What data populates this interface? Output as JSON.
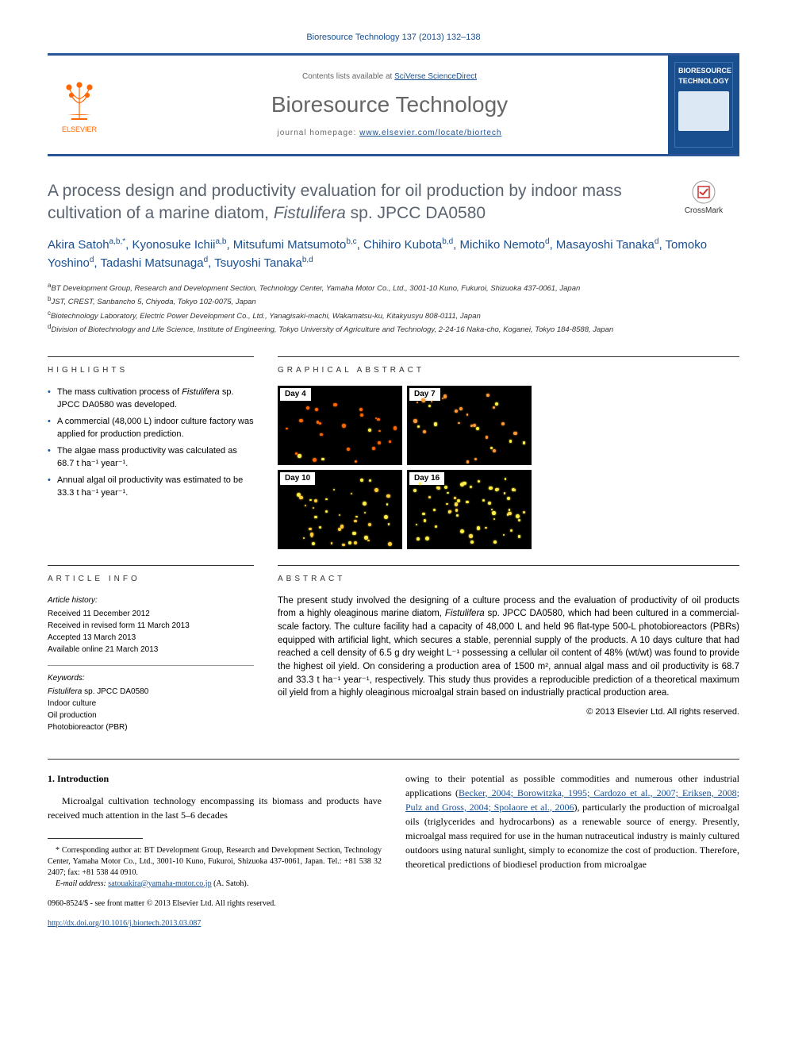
{
  "citation": "Bioresource Technology 137 (2013) 132–138",
  "header": {
    "contents_prefix": "Contents lists available at",
    "contents_link": "SciVerse ScienceDirect",
    "journal_name": "Bioresource Technology",
    "homepage_prefix": "journal homepage:",
    "homepage_url": "www.elsevier.com/locate/biortech",
    "publisher": "ELSEVIER",
    "cover_title": "BIORESOURCE TECHNOLOGY"
  },
  "crossmark_label": "CrossMark",
  "title_parts": {
    "pre": "A process design and productivity evaluation for oil production by indoor mass cultivation of a marine diatom, ",
    "italic": "Fistulifera",
    "post": " sp. JPCC DA0580"
  },
  "authors_html": "Akira Satoh<sup>a,b,*</sup>, Kyonosuke Ichii<sup>a,b</sup>, Mitsufumi Matsumoto<sup>b,c</sup>, Chihiro Kubota<sup>b,d</sup>, Michiko Nemoto<sup>d</sup>, Masayoshi Tanaka<sup>d</sup>, Tomoko Yoshino<sup>d</sup>, Tadashi Matsunaga<sup>d</sup>, Tsuyoshi Tanaka<sup>b,d</sup>",
  "affiliations": [
    "<sup>a</sup>BT Development Group, Research and Development Section, Technology Center, Yamaha Motor Co., Ltd., 3001-10 Kuno, Fukuroi, Shizuoka 437-0061, Japan",
    "<sup>b</sup>JST, CREST, Sanbancho 5, Chiyoda, Tokyo 102-0075, Japan",
    "<sup>c</sup>Biotechnology Laboratory, Electric Power Development Co., Ltd., Yanagisaki-machi, Wakamatsu-ku, Kitakyusyu 808-0111, Japan",
    "<sup>d</sup>Division of Biotechnology and Life Science, Institute of Engineering, Tokyo University of Agriculture and Technology, 2-24-16 Naka-cho, Koganei, Tokyo 184-8588, Japan"
  ],
  "highlights_heading": "HIGHLIGHTS",
  "highlights": [
    "The mass cultivation process of <span class=\"italic\">Fistulifera</span> sp. JPCC DA0580 was developed.",
    "A commercial (48,000 L) indoor culture factory was applied for production prediction.",
    "The algae mass productivity was calculated as 68.7 t ha⁻¹ year⁻¹.",
    "Annual algal oil productivity was estimated to be 33.3 t ha⁻¹ year⁻¹."
  ],
  "graphical_heading": "GRAPHICAL ABSTRACT",
  "ga_cells": [
    {
      "label": "Day 4",
      "dots": 25,
      "color": "#ff6600",
      "yellow": 3
    },
    {
      "label": "Day 7",
      "dots": 30,
      "color": "#ff9933",
      "yellow": 8
    },
    {
      "label": "Day 10",
      "dots": 40,
      "color": "#ffcc33",
      "yellow": 20
    },
    {
      "label": "Day 16",
      "dots": 55,
      "color": "#ffdd44",
      "yellow": 40
    }
  ],
  "article_info_heading": "ARTICLE INFO",
  "article_history_label": "Article history:",
  "article_history": [
    "Received 11 December 2012",
    "Received in revised form 11 March 2013",
    "Accepted 13 March 2013",
    "Available online 21 March 2013"
  ],
  "keywords_label": "Keywords:",
  "keywords": [
    "<span class=\"italic\">Fistulifera</span> sp. JPCC DA0580",
    "Indoor culture",
    "Oil production",
    "Photobioreactor (PBR)"
  ],
  "abstract_heading": "ABSTRACT",
  "abstract_text": "The present study involved the designing of a culture process and the evaluation of productivity of oil products from a highly oleaginous marine diatom, <span class=\"italic\">Fistulifera</span> sp. JPCC DA0580, which had been cultured in a commercial-scale factory. The culture facility had a capacity of 48,000 L and held 96 flat-type 500-L photobioreactors (PBRs) equipped with artificial light, which secures a stable, perennial supply of the products. A 10 days culture that had reached a cell density of 6.5 g dry weight L⁻¹ possessing a cellular oil content of 48% (wt/wt) was found to provide the highest oil yield. On considering a production area of 1500 m², annual algal mass and oil productivity is 68.7 and 33.3 t ha⁻¹ year⁻¹, respectively. This study thus provides a reproducible prediction of a theoretical maximum oil yield from a highly oleaginous microalgal strain based on industrially practical production area.",
  "copyright_text": "© 2013 Elsevier Ltd. All rights reserved.",
  "intro_heading": "1. Introduction",
  "intro_col1": "Microalgal cultivation technology encompassing its biomass and products have received much attention in the last 5–6 decades",
  "intro_col2": "owing to their potential as possible commodities and numerous other industrial applications (<a href=\"#\">Becker, 2004; Borowitzka, 1995; Cardozo et al., 2007; Eriksen, 2008; Pulz and Gross, 2004; Spolaore et al., 2006</a>), particularly the production of microalgal oils (triglycerides and hydrocarbons) as a renewable source of energy. Presently, microalgal mass required for use in the human nutraceutical industry is mainly cultured outdoors using natural sunlight, simply to economize the cost of production. Therefore, theoretical predictions of biodiesel production from microalgae",
  "footnote_text": "* Corresponding author at: BT Development Group, Research and Development Section, Technology Center, Yamaha Motor Co., Ltd., 3001-10 Kuno, Fukuroi, Shizuoka 437-0061, Japan. Tel.: +81 538 32 2407; fax: +81 538 44 0910.",
  "footnote_email_label": "E-mail address:",
  "footnote_email": "satouakira@yamaha-motor.co.jp",
  "footnote_email_author": "(A. Satoh).",
  "doi_prefix": "0960-8524/$ - see front matter © 2013 Elsevier Ltd. All rights reserved.",
  "doi_link": "http://dx.doi.org/10.1016/j.biortech.2013.03.087",
  "colors": {
    "link": "#1a4f8f",
    "title_gray": "#5a6470",
    "elsevier_orange": "#ff6600",
    "border_blue": "#2a5599"
  }
}
